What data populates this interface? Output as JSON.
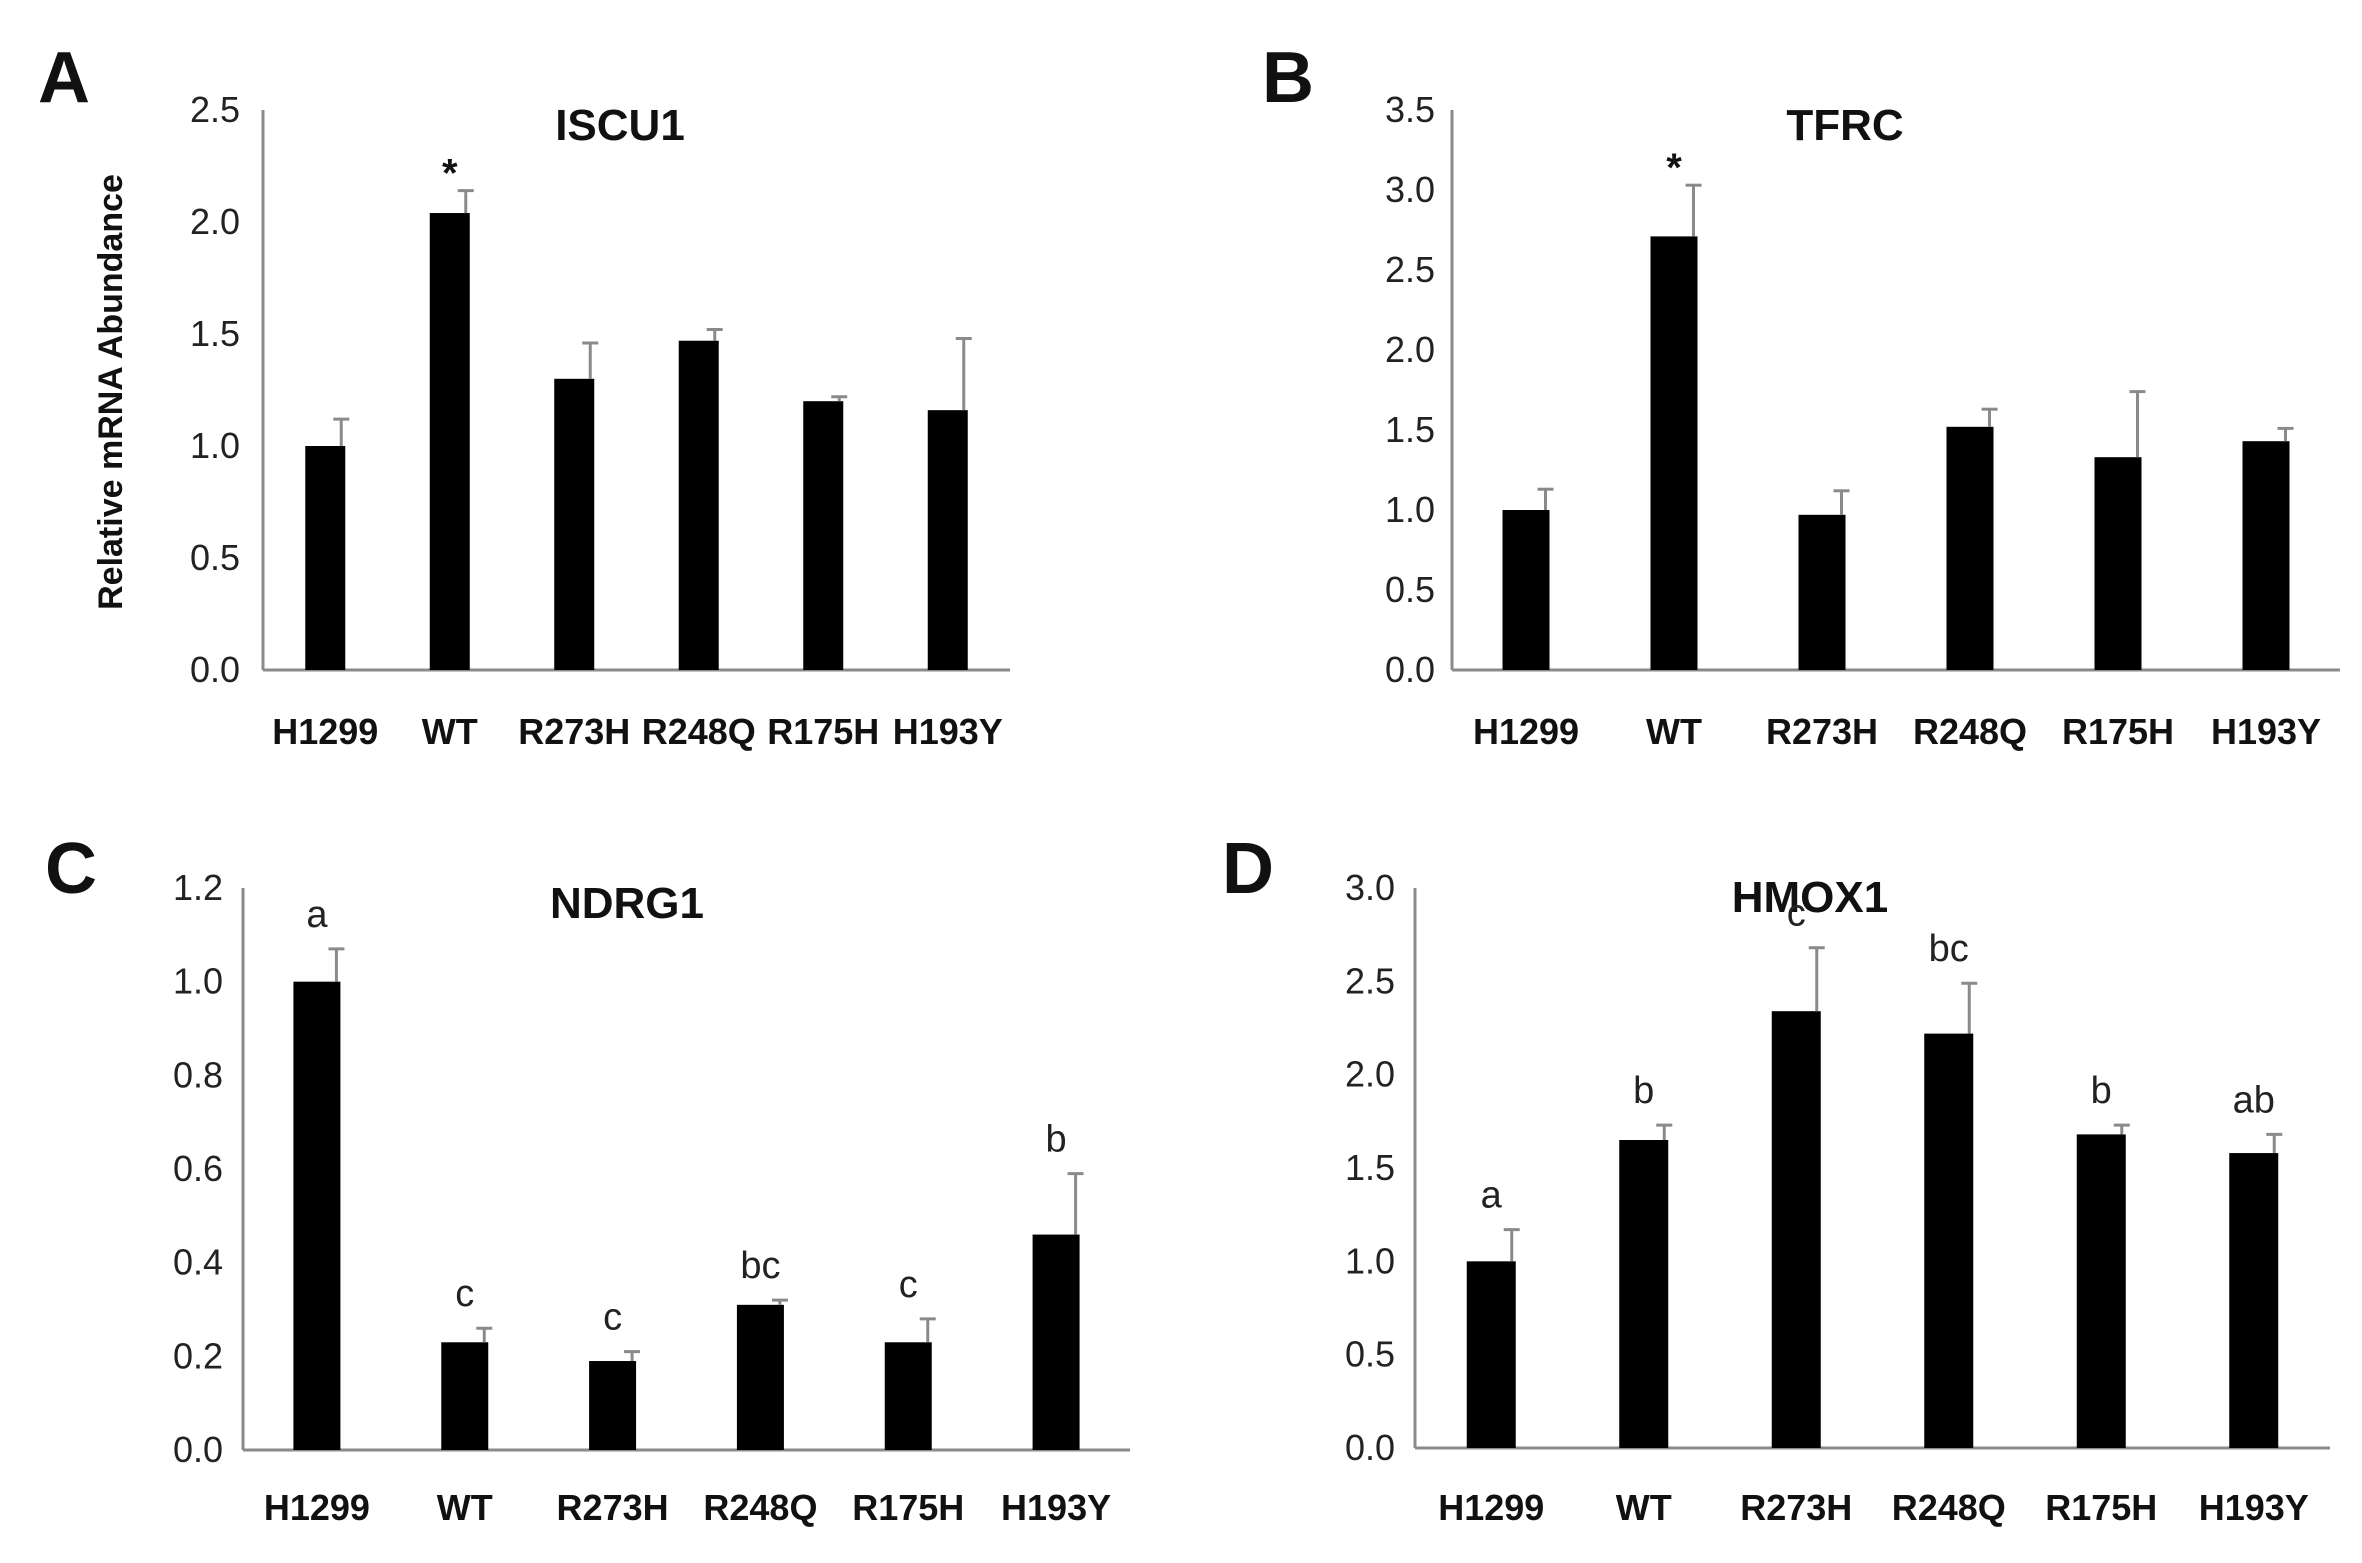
{
  "figure": {
    "charts": [
      {
        "panel": "A"
      },
      {
        "panel": "B"
      },
      {
        "panel": "C"
      },
      {
        "panel": "D"
      }
    ]
  },
  "chart_data": [
    {
      "type": "bar",
      "panel": "A",
      "title": "ISCU1",
      "ylabel": "Relative mRNA Abundance",
      "xlabel": "",
      "categories": [
        "H1299",
        "WT",
        "R273H",
        "R248Q",
        "R175H",
        "H193Y"
      ],
      "values": [
        1.0,
        2.04,
        1.3,
        1.47,
        1.2,
        1.16
      ],
      "errors": [
        0.12,
        0.1,
        0.16,
        0.05,
        0.02,
        0.32
      ],
      "annotations": [
        "",
        "*",
        "",
        "",
        "",
        ""
      ],
      "ylim": [
        0,
        2.5
      ],
      "yticks": [
        "0.0",
        "0.5",
        "1.0",
        "1.5",
        "2.0",
        "2.5"
      ],
      "grid": false
    },
    {
      "type": "bar",
      "panel": "B",
      "title": "TFRC",
      "ylabel": "",
      "xlabel": "",
      "categories": [
        "H1299",
        "WT",
        "R273H",
        "R248Q",
        "R175H",
        "H193Y"
      ],
      "values": [
        1.0,
        2.71,
        0.97,
        1.52,
        1.33,
        1.43
      ],
      "errors": [
        0.13,
        0.32,
        0.15,
        0.11,
        0.41,
        0.08
      ],
      "annotations": [
        "",
        "*",
        "",
        "",
        "",
        ""
      ],
      "ylim": [
        0,
        3.5
      ],
      "yticks": [
        "0.0",
        "0.5",
        "1.0",
        "1.5",
        "2.0",
        "2.5",
        "3.0",
        "3.5"
      ],
      "grid": false
    },
    {
      "type": "bar",
      "panel": "C",
      "title": "NDRG1",
      "ylabel": "",
      "xlabel": "",
      "categories": [
        "H1299",
        "WT",
        "R273H",
        "R248Q",
        "R175H",
        "H193Y"
      ],
      "values": [
        1.0,
        0.23,
        0.19,
        0.31,
        0.23,
        0.46
      ],
      "errors": [
        0.07,
        0.03,
        0.02,
        0.01,
        0.05,
        0.13
      ],
      "annotations": [
        "a",
        "c",
        "c",
        "bc",
        "c",
        "b"
      ],
      "ylim": [
        0,
        1.2
      ],
      "yticks": [
        "0.0",
        "0.2",
        "0.4",
        "0.6",
        "0.8",
        "1.0",
        "1.2"
      ],
      "grid": false
    },
    {
      "type": "bar",
      "panel": "D",
      "title": "HMOX1",
      "ylabel": "",
      "xlabel": "",
      "categories": [
        "H1299",
        "WT",
        "R273H",
        "R248Q",
        "R175H",
        "H193Y"
      ],
      "values": [
        1.0,
        1.65,
        2.34,
        2.22,
        1.68,
        1.58
      ],
      "errors": [
        0.17,
        0.08,
        0.34,
        0.27,
        0.05,
        0.1
      ],
      "annotations": [
        "a",
        "b",
        "c",
        "bc",
        "b",
        "ab"
      ],
      "ylim": [
        0,
        3.0
      ],
      "yticks": [
        "0.0",
        "0.5",
        "1.0",
        "1.5",
        "2.0",
        "2.5",
        "3.0"
      ],
      "grid": false
    }
  ]
}
